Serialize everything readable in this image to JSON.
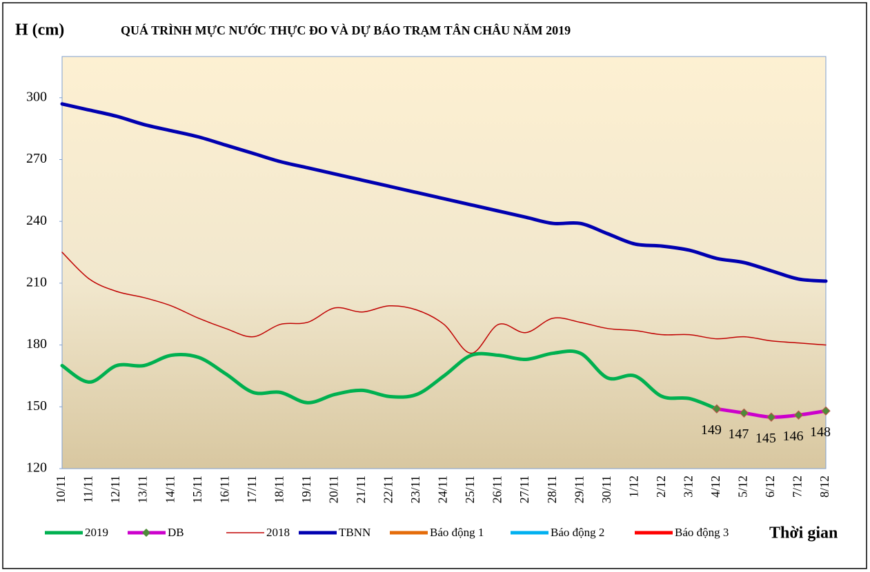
{
  "chart_data": {
    "type": "line",
    "title": "QUÁ TRÌNH MỰC NƯỚC THỰC ĐO VÀ DỰ BÁO TRẠM TÂN CHÂU NĂM 2019",
    "y_label": "H (cm)",
    "x_label": "Thời gian",
    "categories": [
      "10/11",
      "11/11",
      "12/11",
      "13/11",
      "14/11",
      "15/11",
      "16/11",
      "17/11",
      "18/11",
      "19/11",
      "20/11",
      "21/11",
      "22/11",
      "23/11",
      "24/11",
      "25/11",
      "26/11",
      "27/11",
      "28/11",
      "29/11",
      "30/11",
      "1/12",
      "2/12",
      "3/12",
      "4/12",
      "5/12",
      "6/12",
      "7/12",
      "8/12"
    ],
    "ylim": [
      120,
      320
    ],
    "yticks": [
      120,
      150,
      180,
      210,
      240,
      270,
      300
    ],
    "series": [
      {
        "name": "2019",
        "color": "#00b050",
        "width": 5,
        "values": [
          170,
          162,
          170,
          170,
          175,
          174,
          166,
          157,
          157,
          152,
          156,
          158,
          155,
          156,
          165,
          175,
          175,
          173,
          176,
          176,
          164,
          165,
          155,
          154,
          149,
          null,
          null,
          null,
          null
        ]
      },
      {
        "name": "DB",
        "color": "#cc00cc",
        "width": 5,
        "marker": true,
        "values": [
          null,
          null,
          null,
          null,
          null,
          null,
          null,
          null,
          null,
          null,
          null,
          null,
          null,
          null,
          null,
          null,
          null,
          null,
          null,
          null,
          null,
          null,
          null,
          null,
          149,
          147,
          145,
          146,
          148
        ]
      },
      {
        "name": "2018",
        "color": "#c00000",
        "width": 1.5,
        "values": [
          225,
          212,
          206,
          203,
          199,
          193,
          188,
          184,
          190,
          191,
          198,
          196,
          199,
          197,
          190,
          176,
          190,
          186,
          193,
          191,
          188,
          187,
          185,
          185,
          183,
          184,
          182,
          181,
          180
        ]
      },
      {
        "name": "TBNN",
        "color": "#0000b0",
        "width": 5,
        "values": [
          297,
          294,
          291,
          287,
          284,
          281,
          277,
          273,
          269,
          266,
          263,
          260,
          257,
          254,
          251,
          248,
          245,
          242,
          239,
          239,
          234,
          229,
          228,
          226,
          222,
          220,
          216,
          212,
          211
        ]
      },
      {
        "name": "Báo động 1",
        "color": "#e46c0a",
        "width": 5,
        "values": [
          null,
          null,
          null,
          null,
          null,
          null,
          null,
          null,
          null,
          null,
          null,
          null,
          null,
          null,
          null,
          null,
          null,
          null,
          null,
          null,
          null,
          null,
          null,
          null,
          null,
          null,
          null,
          null,
          null
        ]
      },
      {
        "name": "Báo động 2",
        "color": "#00b0f0",
        "width": 5,
        "values": [
          null,
          null,
          null,
          null,
          null,
          null,
          null,
          null,
          null,
          null,
          null,
          null,
          null,
          null,
          null,
          null,
          null,
          null,
          null,
          null,
          null,
          null,
          null,
          null,
          null,
          null,
          null,
          null,
          null
        ]
      },
      {
        "name": "Báo động 3",
        "color": "#ff0000",
        "width": 5,
        "values": [
          null,
          null,
          null,
          null,
          null,
          null,
          null,
          null,
          null,
          null,
          null,
          null,
          null,
          null,
          null,
          null,
          null,
          null,
          null,
          null,
          null,
          null,
          null,
          null,
          null,
          null,
          null,
          null,
          null
        ]
      }
    ]
  }
}
